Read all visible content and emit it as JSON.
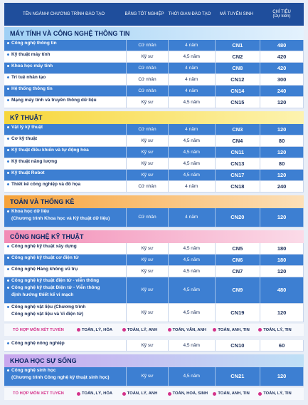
{
  "header": {
    "columns": [
      "TÊN NGÀNH/ CHƯƠNG TRÌNH ĐÀO TẠO",
      "BẰNG TỐT NGHIỆP",
      "THỜI GIAN ĐÀO TẠO",
      "MÃ TUYỂN SINH",
      [
        "CHỈ TIÊU",
        "(Dự kiến)"
      ]
    ]
  },
  "sections": [
    {
      "title": "MÁY TÍNH VÀ CÔNG NGHỆ THÔNG TIN",
      "rows": [
        {
          "names": [
            [
              "Công nghệ thông tin"
            ]
          ],
          "degree": "Cử nhân",
          "duration": "4 năm",
          "code": "CN1",
          "quota": 480
        },
        {
          "names": [
            [
              "Kỹ thuật máy tính"
            ]
          ],
          "degree": "Kỹ sư",
          "duration": "4,5 năm",
          "code": "CN2",
          "quota": 420
        },
        {
          "names": [
            [
              "Khoa học máy tính"
            ]
          ],
          "degree": "Cử nhân",
          "duration": "4 năm",
          "code": "CN8",
          "quota": 420
        },
        {
          "names": [
            [
              "Trí tuệ nhân tạo"
            ]
          ],
          "degree": "Cử nhân",
          "duration": "4 năm",
          "code": "CN12",
          "quota": 300
        },
        {
          "names": [
            [
              "Hệ thống thông tin"
            ]
          ],
          "degree": "Cử nhân",
          "duration": "4 năm",
          "code": "CN14",
          "quota": 240
        },
        {
          "names": [
            [
              "Mạng máy tính và truyền thông dữ liệu"
            ]
          ],
          "degree": "Kỹ sư",
          "duration": "4,5 năm",
          "code": "CN15",
          "quota": 120
        }
      ]
    },
    {
      "title": "KỸ THUẬT",
      "rows": [
        {
          "names": [
            [
              "Vật lý kỹ thuật"
            ]
          ],
          "degree": "Cử nhân",
          "duration": "4 năm",
          "code": "CN3",
          "quota": 120
        },
        {
          "names": [
            [
              "Cơ kỹ thuật"
            ]
          ],
          "degree": "Kỹ sư",
          "duration": "4,5 năm",
          "code": "CN4",
          "quota": 80
        },
        {
          "names": [
            [
              "Kỹ thuật điều khiển và tự động hóa"
            ]
          ],
          "degree": "Kỹ sư",
          "duration": "4,5 năm",
          "code": "CN11",
          "quota": 120
        },
        {
          "names": [
            [
              "Kỹ thuật năng lượng"
            ]
          ],
          "degree": "Kỹ sư",
          "duration": "4,5 năm",
          "code": "CN13",
          "quota": 80
        },
        {
          "names": [
            [
              "Kỹ thuật Robot"
            ]
          ],
          "degree": "Kỹ sư",
          "duration": "4,5 năm",
          "code": "CN17",
          "quota": 120
        },
        {
          "names": [
            [
              "Thiết kế công nghiệp và đồ họa"
            ]
          ],
          "degree": "Cử nhân",
          "duration": "4 năm",
          "code": "CN18",
          "quota": 240
        }
      ]
    },
    {
      "title": "TOÁN VÀ THỐNG KÊ",
      "rows": [
        {
          "names": [
            [
              "Khoa học dữ liệu",
              "(Chương trình Khoa học và Kỹ thuật dữ liệu)"
            ]
          ],
          "degree": "Cử nhân",
          "duration": "4 năm",
          "code": "CN20",
          "quota": 120
        }
      ]
    },
    {
      "title": "CÔNG NGHỆ KỸ THUẬT",
      "rows": [
        {
          "names": [
            [
              "Công nghệ kỹ thuật xây dựng"
            ]
          ],
          "degree": "Kỹ sư",
          "duration": "4,5 năm",
          "code": "CN5",
          "quota": 180
        },
        {
          "names": [
            [
              "Công nghệ kỹ thuật cơ điện tử"
            ]
          ],
          "degree": "Kỹ sư",
          "duration": "4,5 năm",
          "code": "CN6",
          "quota": 180
        },
        {
          "names": [
            [
              "Công nghệ Hàng không vũ trụ"
            ]
          ],
          "degree": "Kỹ sư",
          "duration": "4,5 năm",
          "code": "CN7",
          "quota": 120
        },
        {
          "names": [
            [
              "Công nghệ kỹ thuật điện tử - viễn thông"
            ],
            [
              "Công nghệ kỹ thuật Điện tử - Viễn thông",
              "định hướng thiết kế vi mạch"
            ]
          ],
          "degree": "Kỹ sư",
          "duration": "4,5 năm",
          "code": "CN9",
          "quota": 480
        },
        {
          "names": [
            [
              "Công nghệ vật liệu (Chương trình",
              "Công nghệ vật liệu và Vi điện tử)"
            ]
          ],
          "degree": "Kỹ sư",
          "duration": "4,5 năm",
          "code": "CN19",
          "quota": 120
        }
      ],
      "combos": {
        "label": "TỔ HỢP MÔN XÉT TUYỂN",
        "items": [
          "TOÁN, LÝ, HÓA",
          "TOÁN, LÝ, ANH",
          "TOÁN, VĂN, ANH",
          "TOÁN, ANH, TIN",
          "TOÁN, LÝ, TIN"
        ]
      },
      "rows_after": [
        {
          "names": [
            [
              "Công nghệ nông nghiệp"
            ]
          ],
          "degree": "Kỹ sư",
          "duration": "4,5 năm",
          "code": "CN10",
          "quota": 60
        }
      ]
    },
    {
      "title": "KHOA HỌC SỰ SỐNG",
      "rows": [
        {
          "names": [
            [
              "Công nghệ sinh học",
              "(Chương trình Công nghệ kỹ thuật sinh học)"
            ]
          ],
          "degree": "Kỹ sư",
          "duration": "4,5 năm",
          "code": "CN21",
          "quota": 120
        }
      ],
      "combos": {
        "label": "TỔ HỢP MÔN XÉT TUYỂN",
        "items": [
          "TOÁN, LÝ, HÓA",
          "TOÁN, LÝ, ANH",
          "TOÁN, HOÁ, SINH",
          "TOÁN, ANH, TIN",
          "TOÁN, LÝ, TIN"
        ]
      }
    }
  ]
}
